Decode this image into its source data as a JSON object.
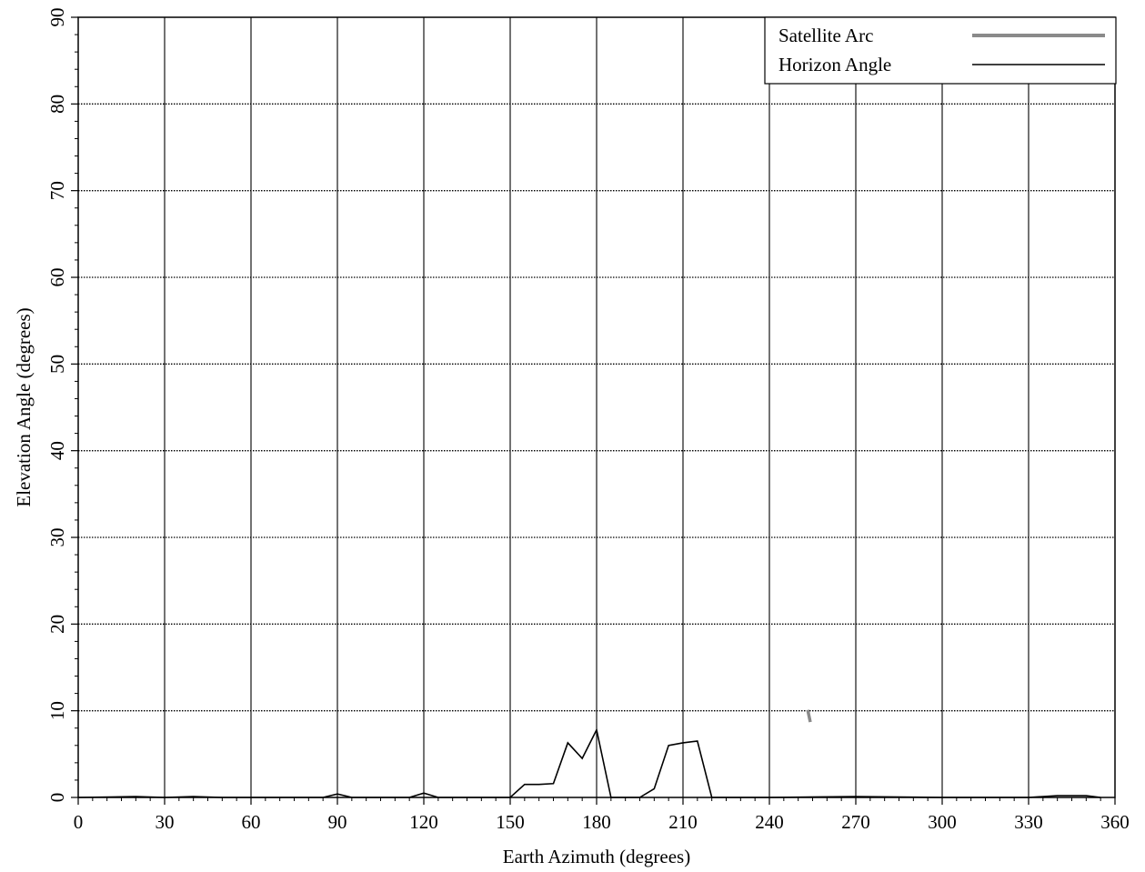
{
  "chart_data": {
    "type": "line",
    "xlabel": "Earth Azimuth (degrees)",
    "ylabel": "Elevation Angle (degrees)",
    "xlim": [
      0,
      360
    ],
    "ylim": [
      0,
      90
    ],
    "x_ticks": [
      0,
      30,
      60,
      90,
      120,
      150,
      180,
      210,
      240,
      270,
      300,
      330,
      360
    ],
    "y_ticks": [
      0,
      10,
      20,
      30,
      40,
      50,
      60,
      70,
      80,
      90
    ],
    "grid": true,
    "legend": {
      "placement": "top-right",
      "entries": [
        {
          "label": "Satellite Arc",
          "color": "#8a8a8a",
          "style": "thick-gray"
        },
        {
          "label": "Horizon Angle",
          "color": "#000000",
          "style": "thin-black"
        }
      ]
    },
    "series": [
      {
        "name": "Satellite Arc",
        "color": "#8a8a8a",
        "x": [
          253.3,
          254.2
        ],
        "y": [
          10.1,
          8.7
        ]
      },
      {
        "name": "Horizon Angle",
        "color": "#000000",
        "x": [
          0,
          20,
          30,
          40,
          50,
          60,
          85,
          90,
          95,
          100,
          115,
          120,
          125,
          130,
          150,
          155,
          160,
          165,
          170,
          175,
          180,
          185,
          190,
          195,
          200,
          205,
          210,
          215,
          220,
          240,
          270,
          300,
          330,
          340,
          350,
          355
        ],
        "y": [
          0,
          0.1,
          0,
          0.1,
          0,
          0,
          0,
          0.4,
          0,
          0,
          0,
          0.5,
          0,
          0,
          0,
          1.5,
          1.5,
          1.6,
          6.3,
          4.5,
          7.8,
          0,
          0,
          0,
          1.0,
          6.0,
          6.3,
          6.5,
          0,
          0,
          0.1,
          0,
          0,
          0.2,
          0.2,
          0
        ]
      }
    ]
  }
}
